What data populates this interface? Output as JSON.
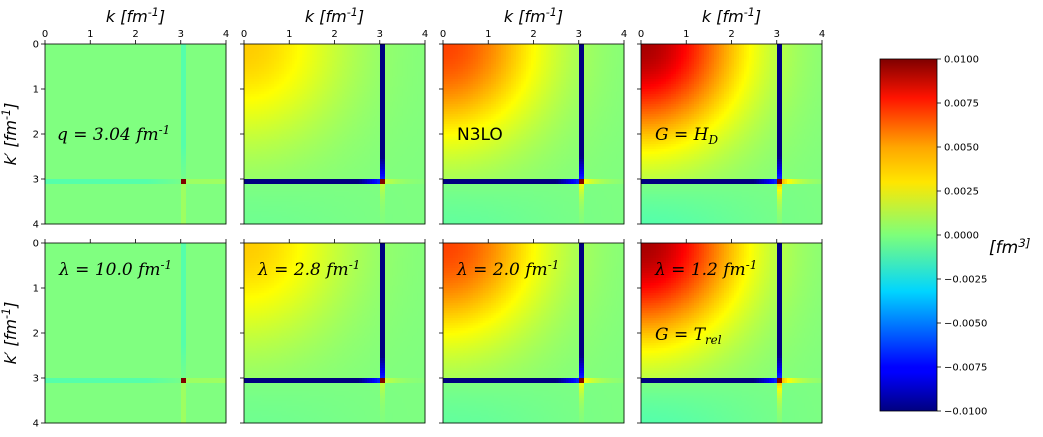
{
  "chart_data": {
    "type": "heatmap",
    "colormap": "jet",
    "layout": {
      "rows": 2,
      "cols": 4
    },
    "x_axis": {
      "label": "k [fm^{-1}]",
      "range": [
        0,
        4
      ],
      "ticks": [
        "0",
        "1",
        "2",
        "3",
        "4"
      ],
      "position": "top",
      "labels_on_row": 1
    },
    "y_axis": {
      "label": "k′ [fm^{-1}]",
      "range": [
        0,
        4
      ],
      "ticks": [
        "0",
        "1",
        "2",
        "3",
        "4"
      ],
      "inverted": true,
      "labels_on_col": 1
    },
    "colorbar": {
      "label": "[fm^3]",
      "range": [
        -0.01,
        0.01
      ],
      "ticks": [
        "0.0100",
        "0.0075",
        "0.0050",
        "0.0025",
        "0.0000",
        "−0.0025",
        "−0.0050",
        "−0.0075",
        "−0.0100"
      ]
    },
    "singularity_k": 3.04,
    "panels": [
      {
        "row": 1,
        "col": 1,
        "annotations": [
          "q = 3.04 fm^{-1}"
        ],
        "background_amplitude": 0.0,
        "line_strength": 0.12
      },
      {
        "row": 1,
        "col": 2,
        "annotations": [],
        "background_amplitude": 0.0035,
        "line_strength": 1.0
      },
      {
        "row": 1,
        "col": 3,
        "annotations": [
          "N3LO"
        ],
        "background_amplitude": 0.0062,
        "line_strength": 1.0
      },
      {
        "row": 1,
        "col": 4,
        "annotations": [
          "G = H_D"
        ],
        "background_amplitude": 0.0092,
        "line_strength": 1.0
      },
      {
        "row": 2,
        "col": 1,
        "annotations": [
          "λ = 10.0 fm^{-1}"
        ],
        "background_amplitude": 0.0,
        "line_strength": 0.12
      },
      {
        "row": 2,
        "col": 2,
        "annotations": [
          "λ = 2.8 fm^{-1}"
        ],
        "background_amplitude": 0.0035,
        "line_strength": 1.0
      },
      {
        "row": 2,
        "col": 3,
        "annotations": [
          "λ = 2.0 fm^{-1}"
        ],
        "background_amplitude": 0.0062,
        "line_strength": 1.0
      },
      {
        "row": 2,
        "col": 4,
        "annotations": [
          "λ = 1.2 fm^{-1}",
          "G = T_rel"
        ],
        "background_amplitude": 0.0092,
        "line_strength": 1.0
      }
    ]
  }
}
